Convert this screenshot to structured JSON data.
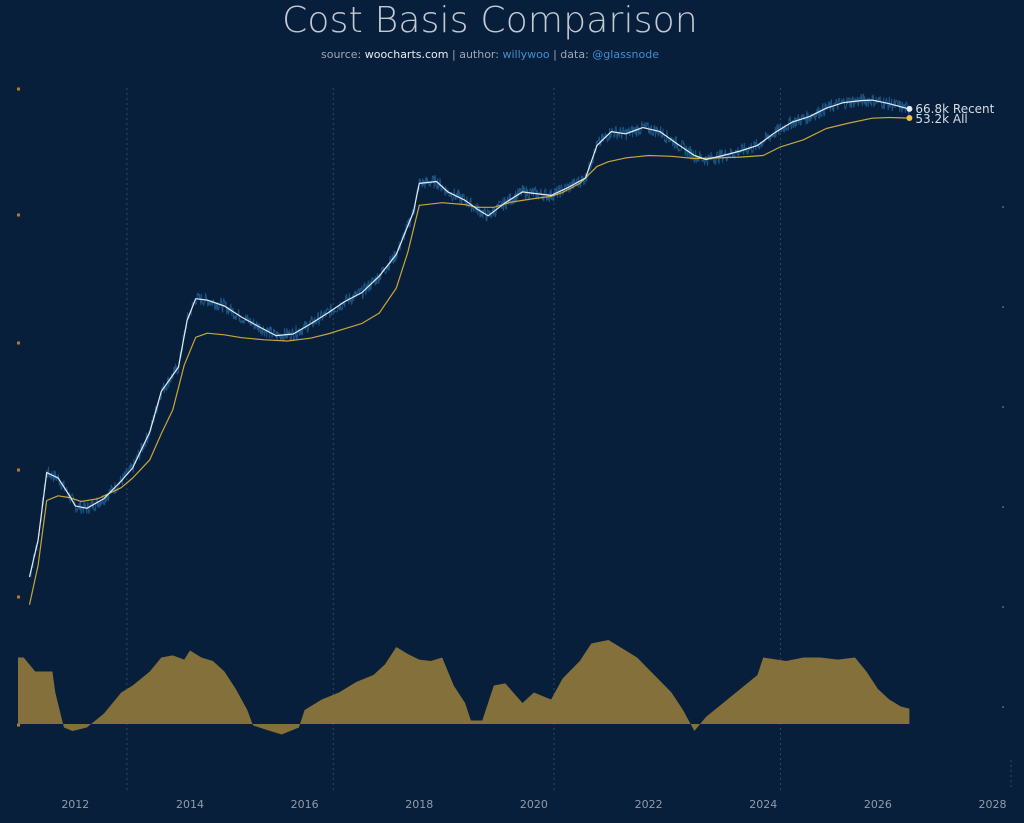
{
  "header": {
    "title": "Cost Basis Comparison",
    "source_prefix": "source: ",
    "source_site": "woocharts.com",
    "sep1": " | author: ",
    "author": "willywoo",
    "sep2": " | data: ",
    "data_source": "@glassnode"
  },
  "colors": {
    "background": "#071f3b",
    "price": "#1e5a8c",
    "recent": "#e6ebf0",
    "all": "#c9a63a",
    "oscillator_fill": "#84703a",
    "grid": "#2c4a68"
  },
  "chart_data": {
    "type": "line",
    "x_range": [
      2011.0,
      2028.2
    ],
    "x_ticks": [
      "2012",
      "2014",
      "2016",
      "2018",
      "2020",
      "2022",
      "2024",
      "2026",
      "2028"
    ],
    "y_scale": "log",
    "halving_dates": [
      2012.9,
      2016.5,
      2020.35,
      2024.3
    ],
    "end_labels": {
      "recent": "66.8k Recent",
      "all": "53.2k All"
    },
    "series": [
      {
        "name": "Recent",
        "key": "recent",
        "points": [
          [
            2011.2,
            0.6
          ],
          [
            2011.35,
            1.5
          ],
          [
            2011.5,
            8
          ],
          [
            2011.7,
            7
          ],
          [
            2011.9,
            4.5
          ],
          [
            2012.0,
            3.5
          ],
          [
            2012.2,
            3.3
          ],
          [
            2012.5,
            4.2
          ],
          [
            2012.8,
            6.5
          ],
          [
            2013.0,
            9
          ],
          [
            2013.3,
            22
          ],
          [
            2013.5,
            60
          ],
          [
            2013.8,
            110
          ],
          [
            2013.95,
            350
          ],
          [
            2014.1,
            600
          ],
          [
            2014.3,
            580
          ],
          [
            2014.6,
            500
          ],
          [
            2014.9,
            380
          ],
          [
            2015.2,
            300
          ],
          [
            2015.5,
            240
          ],
          [
            2015.8,
            250
          ],
          [
            2016.1,
            320
          ],
          [
            2016.4,
            420
          ],
          [
            2016.7,
            560
          ],
          [
            2017.0,
            700
          ],
          [
            2017.3,
            1050
          ],
          [
            2017.6,
            1800
          ],
          [
            2017.9,
            5200
          ],
          [
            2018.0,
            10500
          ],
          [
            2018.3,
            11000
          ],
          [
            2018.5,
            8500
          ],
          [
            2018.8,
            6900
          ],
          [
            2019.0,
            5600
          ],
          [
            2019.2,
            4700
          ],
          [
            2019.5,
            6500
          ],
          [
            2019.8,
            8500
          ],
          [
            2020.0,
            8200
          ],
          [
            2020.3,
            7800
          ],
          [
            2020.6,
            9500
          ],
          [
            2020.9,
            12000
          ],
          [
            2021.1,
            27000
          ],
          [
            2021.35,
            38000
          ],
          [
            2021.6,
            36000
          ],
          [
            2021.9,
            42000
          ],
          [
            2022.2,
            38000
          ],
          [
            2022.5,
            28000
          ],
          [
            2022.8,
            21000
          ],
          [
            2023.0,
            19000
          ],
          [
            2023.3,
            21000
          ],
          [
            2023.6,
            23500
          ],
          [
            2023.9,
            27000
          ],
          [
            2024.2,
            37000
          ],
          [
            2024.5,
            48000
          ],
          [
            2024.8,
            55000
          ],
          [
            2025.1,
            68000
          ],
          [
            2025.4,
            78000
          ],
          [
            2025.7,
            82000
          ],
          [
            2025.9,
            83000
          ],
          [
            2026.2,
            76000
          ],
          [
            2026.45,
            69000
          ],
          [
            2026.55,
            66800
          ]
        ]
      },
      {
        "name": "All",
        "key": "all",
        "points": [
          [
            2011.2,
            0.3
          ],
          [
            2011.35,
            0.8
          ],
          [
            2011.5,
            4
          ],
          [
            2011.7,
            4.5
          ],
          [
            2011.9,
            4.3
          ],
          [
            2012.1,
            3.9
          ],
          [
            2012.4,
            4.2
          ],
          [
            2012.8,
            5.5
          ],
          [
            2013.0,
            7
          ],
          [
            2013.3,
            11
          ],
          [
            2013.5,
            21
          ],
          [
            2013.7,
            38
          ],
          [
            2013.9,
            115
          ],
          [
            2014.1,
            230
          ],
          [
            2014.3,
            255
          ],
          [
            2014.6,
            245
          ],
          [
            2014.9,
            228
          ],
          [
            2015.3,
            216
          ],
          [
            2015.7,
            210
          ],
          [
            2016.1,
            225
          ],
          [
            2016.4,
            250
          ],
          [
            2016.7,
            285
          ],
          [
            2017.0,
            325
          ],
          [
            2017.3,
            420
          ],
          [
            2017.6,
            780
          ],
          [
            2017.8,
            1900
          ],
          [
            2018.0,
            6100
          ],
          [
            2018.4,
            6500
          ],
          [
            2018.8,
            6200
          ],
          [
            2019.0,
            5800
          ],
          [
            2019.3,
            5800
          ],
          [
            2019.6,
            6600
          ],
          [
            2020.0,
            7200
          ],
          [
            2020.3,
            7600
          ],
          [
            2020.5,
            8400
          ],
          [
            2020.8,
            10500
          ],
          [
            2021.1,
            16000
          ],
          [
            2021.3,
            18000
          ],
          [
            2021.6,
            19800
          ],
          [
            2022.0,
            21000
          ],
          [
            2022.4,
            20600
          ],
          [
            2022.8,
            19500
          ],
          [
            2023.2,
            19800
          ],
          [
            2023.6,
            20200
          ],
          [
            2024.0,
            21000
          ],
          [
            2024.3,
            26000
          ],
          [
            2024.7,
            31000
          ],
          [
            2025.1,
            41000
          ],
          [
            2025.5,
            47000
          ],
          [
            2025.9,
            53000
          ],
          [
            2026.2,
            54000
          ],
          [
            2026.55,
            53200
          ]
        ]
      },
      {
        "name": "Oscillator",
        "key": "oscillator",
        "points": [
          [
            2011.0,
            0.95
          ],
          [
            2011.1,
            0.95
          ],
          [
            2011.3,
            0.75
          ],
          [
            2011.6,
            0.75
          ],
          [
            2011.65,
            0.45
          ],
          [
            2011.8,
            -0.05
          ],
          [
            2011.95,
            -0.1
          ],
          [
            2012.2,
            -0.05
          ],
          [
            2012.5,
            0.15
          ],
          [
            2012.8,
            0.45
          ],
          [
            2013.0,
            0.55
          ],
          [
            2013.3,
            0.75
          ],
          [
            2013.5,
            0.95
          ],
          [
            2013.7,
            0.98
          ],
          [
            2013.9,
            0.92
          ],
          [
            2014.0,
            1.05
          ],
          [
            2014.2,
            0.95
          ],
          [
            2014.4,
            0.9
          ],
          [
            2014.6,
            0.75
          ],
          [
            2014.8,
            0.5
          ],
          [
            2015.0,
            0.2
          ],
          [
            2015.1,
            -0.02
          ],
          [
            2015.4,
            -0.1
          ],
          [
            2015.6,
            -0.15
          ],
          [
            2015.9,
            -0.05
          ],
          [
            2016.0,
            0.2
          ],
          [
            2016.3,
            0.35
          ],
          [
            2016.6,
            0.45
          ],
          [
            2016.9,
            0.6
          ],
          [
            2017.2,
            0.7
          ],
          [
            2017.4,
            0.85
          ],
          [
            2017.6,
            1.1
          ],
          [
            2017.8,
            1.0
          ],
          [
            2018.0,
            0.92
          ],
          [
            2018.2,
            0.9
          ],
          [
            2018.4,
            0.95
          ],
          [
            2018.6,
            0.55
          ],
          [
            2018.8,
            0.3
          ],
          [
            2018.9,
            0.05
          ],
          [
            2019.1,
            0.05
          ],
          [
            2019.3,
            0.55
          ],
          [
            2019.5,
            0.58
          ],
          [
            2019.8,
            0.3
          ],
          [
            2020.0,
            0.45
          ],
          [
            2020.3,
            0.35
          ],
          [
            2020.5,
            0.65
          ],
          [
            2020.8,
            0.9
          ],
          [
            2021.0,
            1.15
          ],
          [
            2021.3,
            1.2
          ],
          [
            2021.6,
            1.05
          ],
          [
            2021.8,
            0.95
          ],
          [
            2022.1,
            0.7
          ],
          [
            2022.4,
            0.45
          ],
          [
            2022.6,
            0.2
          ],
          [
            2022.8,
            -0.1
          ],
          [
            2023.0,
            0.1
          ],
          [
            2023.3,
            0.3
          ],
          [
            2023.6,
            0.5
          ],
          [
            2023.9,
            0.7
          ],
          [
            2024.0,
            0.95
          ],
          [
            2024.4,
            0.9
          ],
          [
            2024.7,
            0.95
          ],
          [
            2025.0,
            0.95
          ],
          [
            2025.3,
            0.92
          ],
          [
            2025.6,
            0.95
          ],
          [
            2025.8,
            0.75
          ],
          [
            2026.0,
            0.5
          ],
          [
            2026.2,
            0.35
          ],
          [
            2026.4,
            0.25
          ],
          [
            2026.55,
            0.22
          ]
        ]
      }
    ]
  }
}
